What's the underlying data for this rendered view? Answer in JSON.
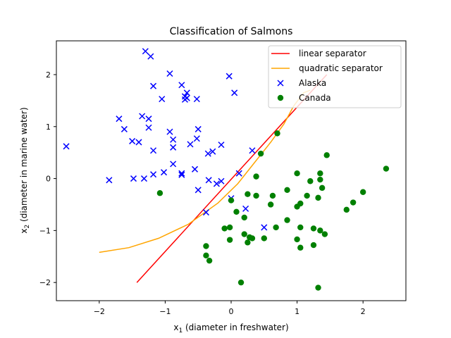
{
  "chart_data": {
    "type": "scatter",
    "title": "Classification of Salmons",
    "xlabel": "x₁ (diameter in freshwater)",
    "xlabel_var": "x",
    "xlabel_sub": "1",
    "xlabel_rest": " (diameter in freshwater)",
    "ylabel_var": "x",
    "ylabel_sub": "2",
    "ylabel_rest": " (diameter in marine water)",
    "xlim": [
      -2.65,
      2.65
    ],
    "ylim": [
      -2.35,
      2.65
    ],
    "xticks": [
      -2,
      -1,
      0,
      1,
      2
    ],
    "yticks": [
      -2,
      -1,
      0,
      1,
      2
    ],
    "grid": false,
    "legend_position": "top-right",
    "series": [
      {
        "name": "linear separator",
        "kind": "line",
        "color": "#ff0000",
        "points": [
          [
            -1.43,
            -2.0
          ],
          [
            1.45,
            2.0
          ]
        ]
      },
      {
        "name": "quadratic separator",
        "kind": "line",
        "color": "#ffa500",
        "points": [
          [
            -2.0,
            -1.42
          ],
          [
            -1.55,
            -1.33
          ],
          [
            -1.1,
            -1.15
          ],
          [
            -0.65,
            -0.88
          ],
          [
            -0.2,
            -0.47
          ],
          [
            0.1,
            -0.1
          ],
          [
            0.35,
            0.3
          ],
          [
            0.6,
            0.7
          ],
          [
            0.8,
            1.05
          ],
          [
            0.95,
            1.4
          ],
          [
            1.1,
            1.65
          ],
          [
            1.2,
            1.7
          ]
        ]
      },
      {
        "name": "Alaska",
        "kind": "scatter",
        "marker": "x",
        "color": "#0000ff",
        "points": [
          [
            -2.5,
            0.62
          ],
          [
            -1.85,
            -0.03
          ],
          [
            -1.7,
            1.15
          ],
          [
            -1.62,
            0.95
          ],
          [
            -1.5,
            0.72
          ],
          [
            -1.48,
            0.0
          ],
          [
            -1.4,
            0.7
          ],
          [
            -1.35,
            1.2
          ],
          [
            -1.3,
            2.45
          ],
          [
            -1.32,
            0.0
          ],
          [
            -1.25,
            1.15
          ],
          [
            -1.25,
            0.98
          ],
          [
            -1.22,
            2.35
          ],
          [
            -1.18,
            1.78
          ],
          [
            -1.18,
            0.54
          ],
          [
            -1.18,
            0.08
          ],
          [
            -1.05,
            1.53
          ],
          [
            -1.02,
            0.12
          ],
          [
            -0.93,
            2.02
          ],
          [
            -0.93,
            0.9
          ],
          [
            -0.88,
            0.75
          ],
          [
            -0.88,
            0.6
          ],
          [
            -0.88,
            0.28
          ],
          [
            -0.75,
            1.8
          ],
          [
            -0.75,
            0.1
          ],
          [
            -0.75,
            0.07
          ],
          [
            -0.7,
            1.58
          ],
          [
            -0.7,
            1.52
          ],
          [
            -0.67,
            1.65
          ],
          [
            -0.67,
            1.55
          ],
          [
            -0.62,
            0.66
          ],
          [
            -0.55,
            0.18
          ],
          [
            -0.52,
            1.53
          ],
          [
            -0.52,
            0.77
          ],
          [
            -0.5,
            0.95
          ],
          [
            -0.5,
            -0.22
          ],
          [
            -0.38,
            -0.65
          ],
          [
            -0.35,
            0.48
          ],
          [
            -0.34,
            -0.03
          ],
          [
            -0.28,
            0.52
          ],
          [
            -0.22,
            -0.1
          ],
          [
            -0.15,
            0.65
          ],
          [
            -0.15,
            -0.05
          ],
          [
            -0.03,
            1.97
          ],
          [
            0.0,
            -0.38
          ],
          [
            0.05,
            1.65
          ],
          [
            0.12,
            0.1
          ],
          [
            0.22,
            -0.58
          ],
          [
            0.32,
            0.54
          ],
          [
            0.5,
            -0.94
          ]
        ]
      },
      {
        "name": "Canada",
        "kind": "scatter",
        "marker": "o",
        "color": "#008000",
        "points": [
          [
            -1.08,
            -0.28
          ],
          [
            -0.38,
            -1.3
          ],
          [
            -0.38,
            -1.48
          ],
          [
            -0.33,
            -1.58
          ],
          [
            0.0,
            -0.42
          ],
          [
            -0.1,
            -0.96
          ],
          [
            -0.02,
            -0.94
          ],
          [
            -0.02,
            -1.18
          ],
          [
            0.08,
            -0.64
          ],
          [
            0.15,
            -2.0
          ],
          [
            0.2,
            -0.75
          ],
          [
            0.2,
            -1.07
          ],
          [
            0.25,
            -1.23
          ],
          [
            0.25,
            -0.3
          ],
          [
            0.28,
            -1.13
          ],
          [
            0.32,
            -1.15
          ],
          [
            0.38,
            0.04
          ],
          [
            0.38,
            -0.33
          ],
          [
            0.45,
            0.48
          ],
          [
            0.5,
            -1.15
          ],
          [
            0.6,
            -0.5
          ],
          [
            0.63,
            -0.33
          ],
          [
            0.68,
            -0.94
          ],
          [
            0.7,
            0.87
          ],
          [
            0.85,
            -0.22
          ],
          [
            0.85,
            -0.8
          ],
          [
            1.0,
            0.1
          ],
          [
            1.0,
            -0.54
          ],
          [
            1.0,
            -1.17
          ],
          [
            1.05,
            -0.48
          ],
          [
            1.05,
            -0.94
          ],
          [
            1.05,
            -1.33
          ],
          [
            1.15,
            -0.33
          ],
          [
            1.2,
            -0.05
          ],
          [
            1.25,
            -0.96
          ],
          [
            1.25,
            -1.28
          ],
          [
            1.32,
            -0.37
          ],
          [
            1.32,
            -2.1
          ],
          [
            1.35,
            0.1
          ],
          [
            1.35,
            -0.02
          ],
          [
            1.35,
            -1.0
          ],
          [
            1.38,
            -0.18
          ],
          [
            1.42,
            -1.07
          ],
          [
            1.45,
            0.45
          ],
          [
            1.75,
            -0.6
          ],
          [
            1.85,
            -0.46
          ],
          [
            2.0,
            -0.26
          ],
          [
            2.35,
            0.19
          ]
        ]
      }
    ]
  }
}
